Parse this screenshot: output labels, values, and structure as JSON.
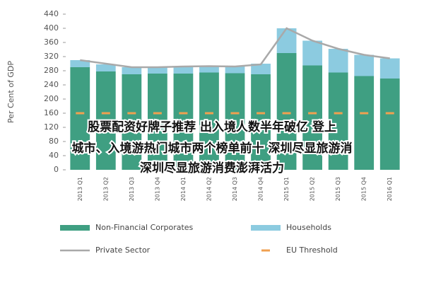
{
  "chart_data": {
    "type": "stacked_bar_line",
    "ylabel": "Per Cent of GDP",
    "categories": [
      "2013 Q1",
      "2013 Q2",
      "2013 Q3",
      "2013 Q4",
      "2014 Q1",
      "2014 Q2",
      "2014 Q3",
      "2014 Q4",
      "2015 Q1",
      "2015 Q2",
      "2015 Q3",
      "2015 Q4",
      "2016 Q1"
    ],
    "series": [
      {
        "name": "Non-Financial Corporates",
        "color": "#3f9f82",
        "kind": "bar",
        "values": [
          290,
          278,
          270,
          272,
          272,
          275,
          273,
          270,
          330,
          295,
          275,
          265,
          258
        ]
      },
      {
        "name": "Households",
        "color": "#8ccbe0",
        "kind": "bar",
        "values": [
          20,
          20,
          20,
          20,
          20,
          20,
          20,
          30,
          70,
          70,
          67,
          60,
          57
        ]
      },
      {
        "name": "Private Sector",
        "color": "#a9a9a9",
        "kind": "line",
        "values": [
          310,
          300,
          290,
          290,
          292,
          293,
          292,
          298,
          400,
          365,
          342,
          325,
          315
        ]
      },
      {
        "name": "EU Threshold",
        "color": "#f0a050",
        "kind": "dash",
        "values": [
          160,
          160,
          160,
          160,
          160,
          160,
          160,
          160,
          160,
          160,
          160,
          160,
          160
        ]
      }
    ],
    "ylim": [
      0,
      440
    ],
    "yticks": [
      0,
      40,
      80,
      120,
      160,
      200,
      240,
      280,
      320,
      360,
      400,
      440
    ],
    "grid": false,
    "annotations": [
      "股票配资好牌子推荐 出入境人数半年破亿 登上",
      "城市、入境游热门城市两个榜单前十 深圳尽显旅游消",
      "深圳尽显旅游消费澎湃活力"
    ]
  }
}
